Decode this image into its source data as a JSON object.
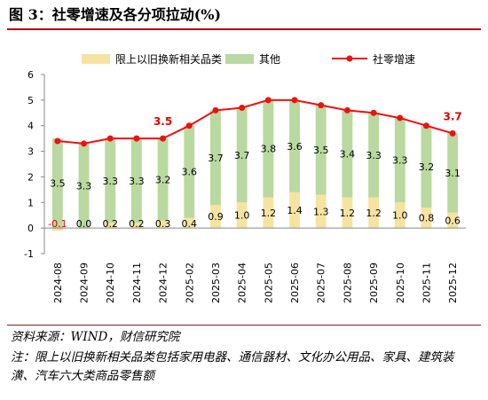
{
  "title": "图 3：社零增速及各分项拉动(%)",
  "source": "资料来源：WIND，财信研究院",
  "note": "注：限上以旧换新相关品类包括家用电器、通信器材、文化办公用品、家具、建筑装潢、汽车六大类商品零售额",
  "colors": {
    "trade_in": "#f7e3a1",
    "other": "#b9d9a0",
    "retail_line": "#ee1111",
    "highlight_label": "#e00000",
    "title_rule": "#b00000"
  },
  "chart_data": {
    "type": "bar",
    "stacked": true,
    "categories": [
      "2024-08",
      "2024-09",
      "2024-10",
      "2024-11",
      "2024-12",
      "2025-02",
      "2025-03",
      "2025-04",
      "2025-05",
      "2025-06",
      "2025-07",
      "2025-08",
      "2025-09",
      "2025-10",
      "2025-11",
      "2025-12"
    ],
    "series": [
      {
        "name": "限上以旧换新相关品类",
        "kind": "bar",
        "values": [
          -0.1,
          0.0,
          0.2,
          0.2,
          0.3,
          0.4,
          0.9,
          1.0,
          1.2,
          1.4,
          1.3,
          1.2,
          1.2,
          1.0,
          0.8,
          0.6
        ],
        "labels": [
          "-0.1",
          "0.0",
          "0.2",
          "0.2",
          "0.3",
          "0.4",
          "0.9",
          "1.0",
          "1.2",
          "1.4",
          "1.3",
          "1.2",
          "1.2",
          "1.0",
          "0.8",
          "0.6"
        ]
      },
      {
        "name": "其他",
        "kind": "bar",
        "values": [
          3.5,
          3.3,
          3.3,
          3.3,
          3.2,
          3.6,
          3.7,
          3.7,
          3.8,
          3.6,
          3.5,
          3.4,
          3.3,
          3.3,
          3.2,
          3.1
        ],
        "labels": [
          "3.5",
          "3.3",
          "3.3",
          "3.3",
          "3.2",
          "3.6",
          "3.7",
          "3.7",
          "3.8",
          "3.6",
          "3.5",
          "3.4",
          "3.3",
          "3.3",
          "3.2",
          "3.1"
        ]
      },
      {
        "name": "社零增速",
        "kind": "line",
        "values": [
          3.4,
          3.3,
          3.5,
          3.5,
          3.5,
          4.0,
          4.6,
          4.7,
          5.0,
          5.0,
          4.8,
          4.6,
          4.5,
          4.3,
          4.0,
          3.7
        ]
      }
    ],
    "line_labels": [
      {
        "index": 4,
        "text": "3.5"
      },
      {
        "index": 15,
        "text": "3.7"
      }
    ],
    "ylim": [
      -1,
      6
    ],
    "yticks": [
      "-1",
      "0",
      "1",
      "2",
      "3",
      "4",
      "5",
      "6"
    ],
    "legend": "top",
    "grid": false
  }
}
